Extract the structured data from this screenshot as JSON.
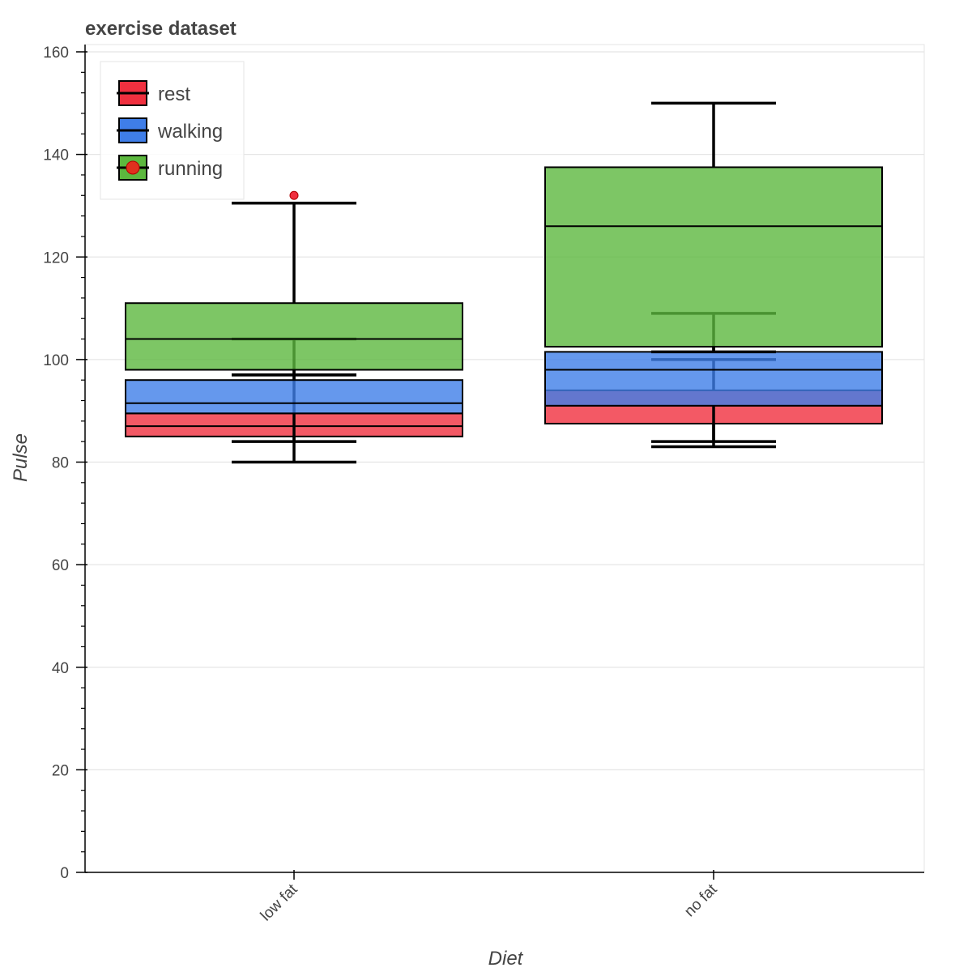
{
  "chart_data": {
    "type": "box",
    "title": "exercise dataset",
    "xlabel": "Diet",
    "ylabel": "Pulse",
    "categories": [
      "low fat",
      "no fat"
    ],
    "ylim": [
      0,
      160
    ],
    "yticks": [
      0,
      20,
      40,
      60,
      80,
      100,
      120,
      140,
      160
    ],
    "grid": true,
    "legend_position": "top-left",
    "series": [
      {
        "name": "rest",
        "color": "#f0303f",
        "boxes": [
          {
            "category": "low fat",
            "q1": 85,
            "median": 87,
            "q3": 89.5,
            "whisker_low": 80,
            "whisker_high": 97,
            "outliers": []
          },
          {
            "category": "no fat",
            "q1": 87.5,
            "median": 91,
            "q3": 94,
            "whisker_low": 83,
            "whisker_high": 100,
            "outliers": []
          }
        ]
      },
      {
        "name": "walking",
        "color": "#3f7ee8",
        "boxes": [
          {
            "category": "low fat",
            "q1": 89.5,
            "median": 91.5,
            "q3": 96,
            "whisker_low": 84,
            "whisker_high": 104,
            "outliers": []
          },
          {
            "category": "no fat",
            "q1": 91,
            "median": 98,
            "q3": 101.5,
            "whisker_low": 84,
            "whisker_high": 109,
            "outliers": []
          }
        ]
      },
      {
        "name": "running",
        "color": "#5cb83e",
        "boxes": [
          {
            "category": "low fat",
            "q1": 98,
            "median": 104,
            "q3": 111,
            "whisker_low": 97,
            "whisker_high": 130.5,
            "outliers": [
              132
            ]
          },
          {
            "category": "no fat",
            "q1": 102.5,
            "median": 126,
            "q3": 137.5,
            "whisker_low": 101.5,
            "whisker_high": 150,
            "outliers": []
          }
        ]
      }
    ]
  }
}
